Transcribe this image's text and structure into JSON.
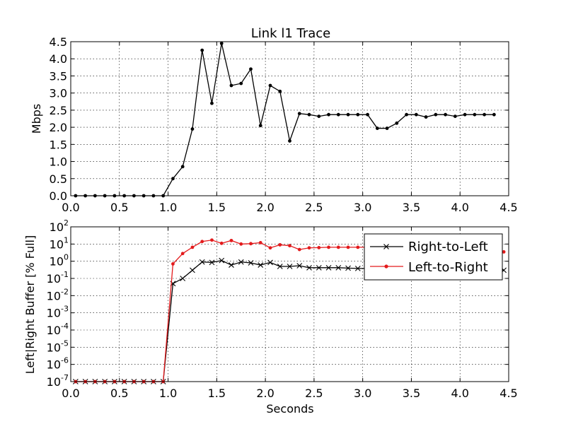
{
  "chart_data": [
    {
      "type": "line",
      "title": "Link l1 Trace",
      "xlabel": "",
      "ylabel": "Mbps",
      "xlim": [
        0,
        4.5
      ],
      "ylim": [
        0,
        4.5
      ],
      "grid": true,
      "x_ticks": [
        "0.0",
        "0.5",
        "1.0",
        "1.5",
        "2.0",
        "2.5",
        "3.0",
        "3.5",
        "4.0",
        "4.5"
      ],
      "y_ticks": [
        "0.0",
        "0.5",
        "1.0",
        "1.5",
        "2.0",
        "2.5",
        "3.0",
        "3.5",
        "4.0",
        "4.5"
      ],
      "series": [
        {
          "color": "#000000",
          "marker": "dot",
          "x": [
            0.05,
            0.15,
            0.25,
            0.35,
            0.45,
            0.55,
            0.65,
            0.75,
            0.85,
            0.95,
            1.05,
            1.15,
            1.25,
            1.35,
            1.45,
            1.55,
            1.65,
            1.75,
            1.85,
            1.95,
            2.05,
            2.15,
            2.25,
            2.35,
            2.45,
            2.55,
            2.65,
            2.75,
            2.85,
            2.95,
            3.05,
            3.15,
            3.25,
            3.35,
            3.45,
            3.55,
            3.65,
            3.75,
            3.85,
            3.95,
            4.05,
            4.15,
            4.25,
            4.35
          ],
          "y": [
            0,
            0,
            0,
            0,
            0,
            0,
            0,
            0,
            0,
            0,
            0.5,
            0.85,
            1.95,
            4.25,
            2.7,
            4.45,
            3.22,
            3.28,
            3.7,
            2.05,
            3.22,
            3.05,
            1.6,
            2.4,
            2.37,
            2.32,
            2.37,
            2.37,
            2.37,
            2.37,
            2.37,
            1.97,
            1.97,
            2.12,
            2.37,
            2.37,
            2.3,
            2.37,
            2.37,
            2.32,
            2.37,
            2.37,
            2.37,
            2.37
          ]
        }
      ]
    },
    {
      "type": "line",
      "title": "",
      "xlabel": "Seconds",
      "ylabel": "Left|Right Buffer [% Full]",
      "xlim": [
        0,
        4.5
      ],
      "y_scale": "log",
      "ylim_exp": [
        -7,
        2
      ],
      "grid": true,
      "legend_position": "top-right",
      "x_ticks": [
        "0.0",
        "0.5",
        "1.0",
        "1.5",
        "2.0",
        "2.5",
        "3.0",
        "3.5",
        "4.0",
        "4.5"
      ],
      "y_ticks": [
        {
          "base": "10",
          "exp": "-7"
        },
        {
          "base": "10",
          "exp": "-6"
        },
        {
          "base": "10",
          "exp": "-5"
        },
        {
          "base": "10",
          "exp": "-4"
        },
        {
          "base": "10",
          "exp": "-3"
        },
        {
          "base": "10",
          "exp": "-2"
        },
        {
          "base": "10",
          "exp": "-1"
        },
        {
          "base": "10",
          "exp": "0"
        },
        {
          "base": "10",
          "exp": "1"
        },
        {
          "base": "10",
          "exp": "2"
        }
      ],
      "series": [
        {
          "name": "Right-to-Left",
          "color": "#000000",
          "marker": "x",
          "x": [
            0.05,
            0.15,
            0.25,
            0.35,
            0.45,
            0.55,
            0.65,
            0.75,
            0.85,
            0.95,
            1.05,
            1.15,
            1.25,
            1.35,
            1.45,
            1.55,
            1.65,
            1.75,
            1.85,
            1.95,
            2.05,
            2.15,
            2.25,
            2.35,
            2.45,
            2.55,
            2.65,
            2.75,
            2.85,
            2.95,
            3.05,
            3.15,
            3.25,
            3.35,
            3.45,
            3.55,
            3.65,
            3.75,
            3.85,
            3.95,
            4.05,
            4.15,
            4.25,
            4.35,
            4.45
          ],
          "y": [
            1e-07,
            1e-07,
            1e-07,
            1e-07,
            1e-07,
            1e-07,
            1e-07,
            1e-07,
            1e-07,
            1e-07,
            0.05,
            0.1,
            0.3,
            0.9,
            0.85,
            1.1,
            0.6,
            0.9,
            0.8,
            0.6,
            0.85,
            0.5,
            0.5,
            0.55,
            0.42,
            0.42,
            0.42,
            0.42,
            0.4,
            0.38,
            0.38,
            0.38,
            0.38,
            0.38,
            0.38,
            0.38,
            0.38,
            0.38,
            0.38,
            0.38,
            0.38,
            0.38,
            0.38,
            0.38,
            0.3
          ]
        },
        {
          "name": "Left-to-Right",
          "color": "#e31a1c",
          "marker": "dot",
          "x": [
            0.05,
            0.15,
            0.25,
            0.35,
            0.45,
            0.55,
            0.65,
            0.75,
            0.85,
            0.95,
            1.05,
            1.15,
            1.25,
            1.35,
            1.45,
            1.55,
            1.65,
            1.75,
            1.85,
            1.95,
            2.05,
            2.15,
            2.25,
            2.35,
            2.45,
            2.55,
            2.65,
            2.75,
            2.85,
            2.95,
            3.05,
            3.15,
            3.25,
            3.35,
            3.45,
            3.55,
            3.65,
            3.75,
            3.85,
            3.95,
            4.05,
            4.15,
            4.25,
            4.35,
            4.45
          ],
          "y": [
            1e-07,
            1e-07,
            1e-07,
            1e-07,
            1e-07,
            1e-07,
            1e-07,
            1e-07,
            1e-07,
            1e-07,
            0.7,
            2.8,
            6.5,
            14,
            17,
            11,
            16,
            10,
            10.5,
            12,
            6,
            9,
            8,
            4.8,
            6,
            6.2,
            6.5,
            6.5,
            6.5,
            6.5,
            6.5,
            6.5,
            6.5,
            6.5,
            6,
            5.5,
            5.2,
            5,
            4.8,
            4.6,
            4.4,
            4.2,
            4,
            3.8,
            3.5
          ]
        }
      ]
    }
  ]
}
